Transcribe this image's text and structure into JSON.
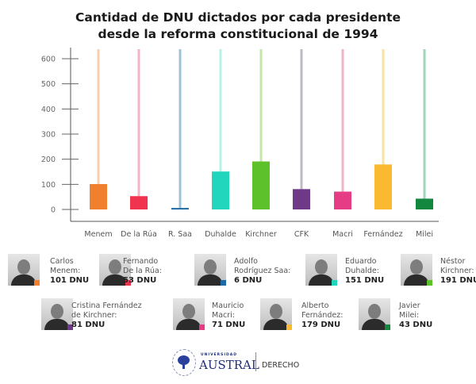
{
  "title": {
    "line1": "Cantidad de DNU dictados por cada presidente",
    "line2": "desde la reforma constitucional de 1994"
  },
  "chart_data": {
    "type": "bar",
    "title": "Cantidad de DNU dictados por cada presidente desde la reforma constitucional de 1994",
    "xlabel": "",
    "ylabel": "",
    "ylim": [
      0,
      600
    ],
    "yticks": [
      0,
      100,
      200,
      300,
      400,
      500,
      600
    ],
    "grid": false,
    "legend": "bottom",
    "categories": [
      "Menem",
      "De la Rúa",
      "R. Saa",
      "Duhalde",
      "Kirchner",
      "CFK",
      "Macri",
      "Fernández",
      "Milei"
    ],
    "values": [
      101,
      53,
      6,
      151,
      191,
      81,
      71,
      179,
      43
    ],
    "colors": [
      "#f07f2e",
      "#f0334f",
      "#1e6aa6",
      "#22d6bd",
      "#5cc12a",
      "#6e3a87",
      "#e63b85",
      "#f9b930",
      "#14873f"
    ],
    "stem_colors": [
      "#f6cfae",
      "#f2b4c2",
      "#9fc3d4",
      "#b7f0e5",
      "#c3e7a9",
      "#bdbbc6",
      "#eeb2cc",
      "#fbe0a3",
      "#9ed5bb"
    ]
  },
  "legend": {
    "items": [
      {
        "name": "Carlos\nMenem:",
        "line1": "Carlos",
        "line2": "Menem:",
        "count": "101 DNU",
        "color": "#f07f2e"
      },
      {
        "line1": "Fernando",
        "line2": "De la Rúa:",
        "count": "53 DNU",
        "color": "#f0334f"
      },
      {
        "line1": "Adolfo",
        "line2": "Rodríguez Saa:",
        "count": "6 DNU",
        "color": "#1e6aa6"
      },
      {
        "line1": "Eduardo",
        "line2": "Duhalde:",
        "count": "151 DNU",
        "color": "#22d6bd"
      },
      {
        "line1": "Néstor",
        "line2": "Kirchner:",
        "count": "191 DNU",
        "color": "#5cc12a"
      },
      {
        "line1": "Cristina Fernández",
        "line2": "de Kirchner:",
        "count": "81 DNU",
        "color": "#6e3a87"
      },
      {
        "line1": "Mauricio",
        "line2": "Macri:",
        "count": "71 DNU",
        "color": "#e63b85"
      },
      {
        "line1": "Alberto",
        "line2": "Fernández:",
        "count": "179 DNU",
        "color": "#f9b930"
      },
      {
        "line1": "Javier",
        "line2": "Milei:",
        "count": "43 DNU",
        "color": "#14873f"
      }
    ]
  },
  "footer": {
    "university_small": "UNIVERSIDAD",
    "university": "AUSTRAL",
    "faculty": "DERECHO",
    "brand_color": "#1f2f7a"
  }
}
